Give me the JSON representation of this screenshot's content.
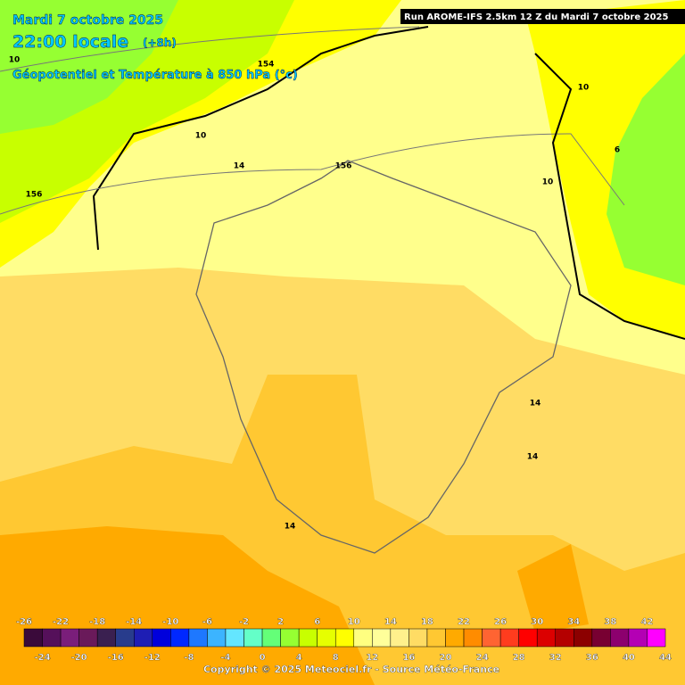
{
  "header": {
    "date": "Mardi 7 octobre 2025",
    "time": "22:00 locale",
    "offset": "(+8h)",
    "field": "Géopotentiel et Température à 850 hPa (°c)",
    "run": "Run AROME-IFS 2.5km 12 Z du Mardi 7 octobre 2025"
  },
  "contour_labels": [
    "10",
    "154",
    "10",
    "156",
    "156",
    "10",
    "10",
    "6",
    "14",
    "14",
    "14",
    "14"
  ],
  "legend": {
    "values": [
      -26,
      -24,
      -22,
      -20,
      -18,
      -16,
      -14,
      -12,
      -10,
      -8,
      -6,
      -4,
      -2,
      0,
      2,
      4,
      6,
      8,
      10,
      12,
      14,
      16,
      18,
      20,
      22,
      24,
      26,
      28,
      30,
      32,
      34,
      36,
      38,
      40,
      42,
      44
    ],
    "colors": [
      "#3a0a3a",
      "#55105a",
      "#7a1e7a",
      "#6a1a5a",
      "#3a2050",
      "#283c8c",
      "#1e1eb4",
      "#0000dc",
      "#0028ff",
      "#1e78ff",
      "#3cb4ff",
      "#64e6ff",
      "#64ffc8",
      "#64ff78",
      "#96ff32",
      "#c8ff00",
      "#e6ff00",
      "#ffff00",
      "#ffff80",
      "#ffff9a",
      "#fff08c",
      "#ffdc64",
      "#ffc832",
      "#ffaa00",
      "#ff8c00",
      "#ff6432",
      "#ff3c1e",
      "#ff0000",
      "#dc0000",
      "#b40000",
      "#8c0000",
      "#780032",
      "#8c006e",
      "#b400b4",
      "#ff00ff"
    ]
  },
  "footer": "Copyright © 2025 Meteociel.fr - Source Météo-France"
}
